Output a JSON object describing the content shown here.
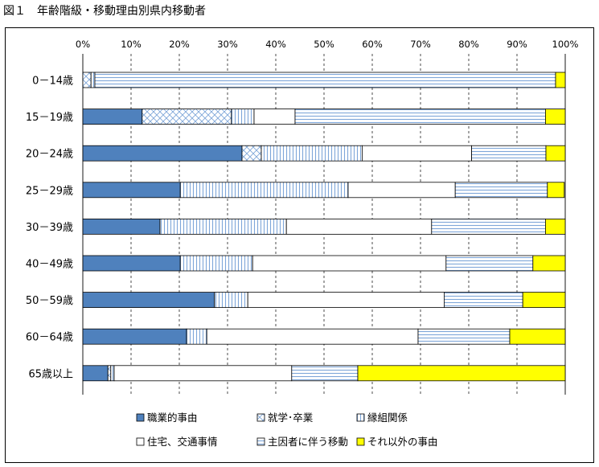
{
  "figure_title": "図１　年齢階級・移動理由別県内移動者",
  "chart_data": {
    "type": "bar",
    "orientation": "horizontal",
    "stacked": "percent",
    "title": "図１　年齢階級・移動理由別県内移動者",
    "xlabel": "",
    "ylabel": "",
    "xlim": [
      0,
      100
    ],
    "x_ticks": [
      "0%",
      "10%",
      "20%",
      "30%",
      "40%",
      "50%",
      "60%",
      "70%",
      "80%",
      "90%",
      "100%"
    ],
    "grid": "vertical dashed",
    "legend_position": "bottom",
    "categories": [
      "0－14歳",
      "15－19歳",
      "20－24歳",
      "25－29歳",
      "30－39歳",
      "40－49歳",
      "50－59歳",
      "60－64歳",
      "65歳以上"
    ],
    "series": [
      {
        "name": "職業的事由",
        "color": "#4f81bd",
        "pattern": "solid",
        "values": [
          0,
          12.3,
          33,
          20.2,
          16,
          20.2,
          27.3,
          21.5,
          5.2
        ]
      },
      {
        "name": "就学･卒業",
        "color": "#8db3e2",
        "pattern": "crosshatch",
        "values": [
          1.7,
          18.5,
          4,
          0,
          0,
          0,
          0,
          0,
          0.6
        ]
      },
      {
        "name": "縁組関係",
        "color": "#8db3e2",
        "pattern": "vertical",
        "values": [
          0.8,
          4.7,
          20.9,
          34.8,
          26.2,
          15,
          6.9,
          4.2,
          0.7
        ]
      },
      {
        "name": "住宅、交通事情",
        "color": "#ffffff",
        "pattern": "none",
        "values": [
          0,
          8.5,
          22.7,
          22.2,
          30.1,
          40.1,
          40.7,
          43.8,
          36.8
        ]
      },
      {
        "name": "主因者に伴う移動",
        "color": "#8db3e2",
        "pattern": "horizontal",
        "values": [
          95.5,
          51.9,
          15.4,
          19.1,
          23.6,
          18,
          16.3,
          19,
          13.7
        ]
      },
      {
        "name": "それ以外の事由",
        "color": "#ffff00",
        "pattern": "solid",
        "values": [
          2,
          4.1,
          4,
          3.5,
          4.1,
          6.7,
          8.8,
          11.5,
          43
        ]
      }
    ]
  }
}
